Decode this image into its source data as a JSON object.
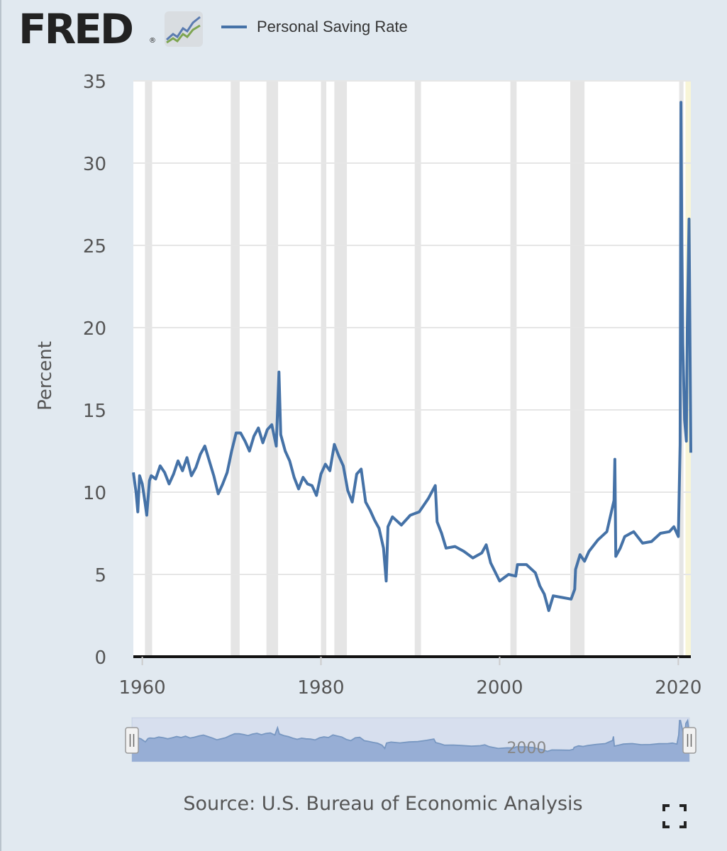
{
  "header": {
    "logo_text": "FRED",
    "logo_registered": "®",
    "logo_icon": "line-chart-icon",
    "legend_label": "Personal Saving Rate"
  },
  "colors": {
    "series": "#4572a7",
    "recession": "#e5e5e5",
    "plot_bg": "#ffffff",
    "page_bg": "#e1e9f0",
    "navigator_mask": "#b6c6e3",
    "navigator_fill": "#7f9ccb",
    "highlight": "#f8f5d7"
  },
  "chart_data": {
    "type": "line",
    "title": "",
    "xlabel": "",
    "ylabel": "Percent",
    "xlim": [
      1959.0,
      2021.4
    ],
    "ylim": [
      0,
      35
    ],
    "yticks": [
      0,
      5,
      10,
      15,
      20,
      25,
      30,
      35
    ],
    "xticks": [
      1960,
      1980,
      2000,
      2020
    ],
    "grid": true,
    "legend": "top",
    "recessions": [
      [
        1960.3,
        1961.1
      ],
      [
        1969.9,
        1970.9
      ],
      [
        1973.9,
        1975.2
      ],
      [
        1980.0,
        1980.6
      ],
      [
        1981.5,
        1982.9
      ],
      [
        1990.5,
        1991.2
      ],
      [
        2001.2,
        2001.9
      ],
      [
        2007.9,
        2009.5
      ],
      [
        2020.1,
        2020.3
      ]
    ],
    "highlight_range": [
      2020.8,
      2021.4
    ],
    "series": [
      {
        "name": "Personal Saving Rate",
        "x": [
          1959.0,
          1959.3,
          1959.5,
          1959.7,
          1960.0,
          1960.3,
          1960.5,
          1960.8,
          1961.0,
          1961.5,
          1962.0,
          1962.5,
          1963.0,
          1963.5,
          1964.0,
          1964.5,
          1965.0,
          1965.5,
          1966.0,
          1966.5,
          1967.0,
          1967.5,
          1968.0,
          1968.5,
          1969.0,
          1969.5,
          1970.0,
          1970.5,
          1971.0,
          1971.5,
          1972.0,
          1972.5,
          1973.0,
          1973.5,
          1974.0,
          1974.5,
          1975.0,
          1975.3,
          1975.5,
          1976.0,
          1976.5,
          1977.0,
          1977.5,
          1978.0,
          1978.5,
          1979.0,
          1979.5,
          1980.0,
          1980.5,
          1981.0,
          1981.5,
          1982.0,
          1982.5,
          1983.0,
          1983.5,
          1984.0,
          1984.5,
          1985.0,
          1985.5,
          1986.0,
          1986.5,
          1987.0,
          1987.3,
          1987.5,
          1988.0,
          1989.0,
          1990.0,
          1991.0,
          1992.0,
          1992.8,
          1993.0,
          1993.5,
          1994.0,
          1995.0,
          1996.0,
          1997.0,
          1998.0,
          1998.5,
          1999.0,
          2000.0,
          2001.0,
          2001.8,
          2002.0,
          2003.0,
          2004.0,
          2004.5,
          2005.0,
          2005.5,
          2006.0,
          2007.0,
          2008.0,
          2008.4,
          2008.5,
          2009.0,
          2009.5,
          2010.0,
          2011.0,
          2012.0,
          2012.8,
          2012.9,
          2013.0,
          2013.5,
          2014.0,
          2015.0,
          2016.0,
          2017.0,
          2018.0,
          2019.0,
          2019.5,
          2020.0,
          2020.2,
          2020.3,
          2020.4,
          2020.5,
          2020.7,
          2020.9,
          2021.0,
          2021.2,
          2021.4
        ],
        "values": [
          11.2,
          10.0,
          8.8,
          11.0,
          10.5,
          9.4,
          8.6,
          10.7,
          11.0,
          10.8,
          11.6,
          11.2,
          10.5,
          11.1,
          11.9,
          11.3,
          12.1,
          11.0,
          11.5,
          12.3,
          12.8,
          11.9,
          11.0,
          9.9,
          10.5,
          11.2,
          12.5,
          13.6,
          13.6,
          13.1,
          12.5,
          13.4,
          13.9,
          13.0,
          13.8,
          14.1,
          12.8,
          17.3,
          13.5,
          12.5,
          11.9,
          10.9,
          10.2,
          10.9,
          10.5,
          10.4,
          9.8,
          11.1,
          11.7,
          11.3,
          12.9,
          12.2,
          11.6,
          10.1,
          9.4,
          11.1,
          11.4,
          9.4,
          8.9,
          8.3,
          7.8,
          6.6,
          4.6,
          7.9,
          8.5,
          8.0,
          8.6,
          8.8,
          9.6,
          10.4,
          8.2,
          7.5,
          6.6,
          6.7,
          6.4,
          6.0,
          6.3,
          6.8,
          5.7,
          4.6,
          5.0,
          4.9,
          5.6,
          5.6,
          5.1,
          4.3,
          3.8,
          2.8,
          3.7,
          3.6,
          3.5,
          4.1,
          5.3,
          6.2,
          5.8,
          6.4,
          7.1,
          7.6,
          9.5,
          12.0,
          6.1,
          6.6,
          7.3,
          7.6,
          6.9,
          7.0,
          7.5,
          7.6,
          7.9,
          7.3,
          12.9,
          33.7,
          24.9,
          19.0,
          14.4,
          13.1,
          19.9,
          26.6,
          12.4
        ]
      }
    ],
    "navigator": {
      "tick_label": "2000",
      "range": [
        1959.0,
        2021.4
      ]
    }
  },
  "footer": {
    "source": "Source: U.S. Bureau of Economic Analysis",
    "fullscreen_icon": "fullscreen-icon"
  }
}
